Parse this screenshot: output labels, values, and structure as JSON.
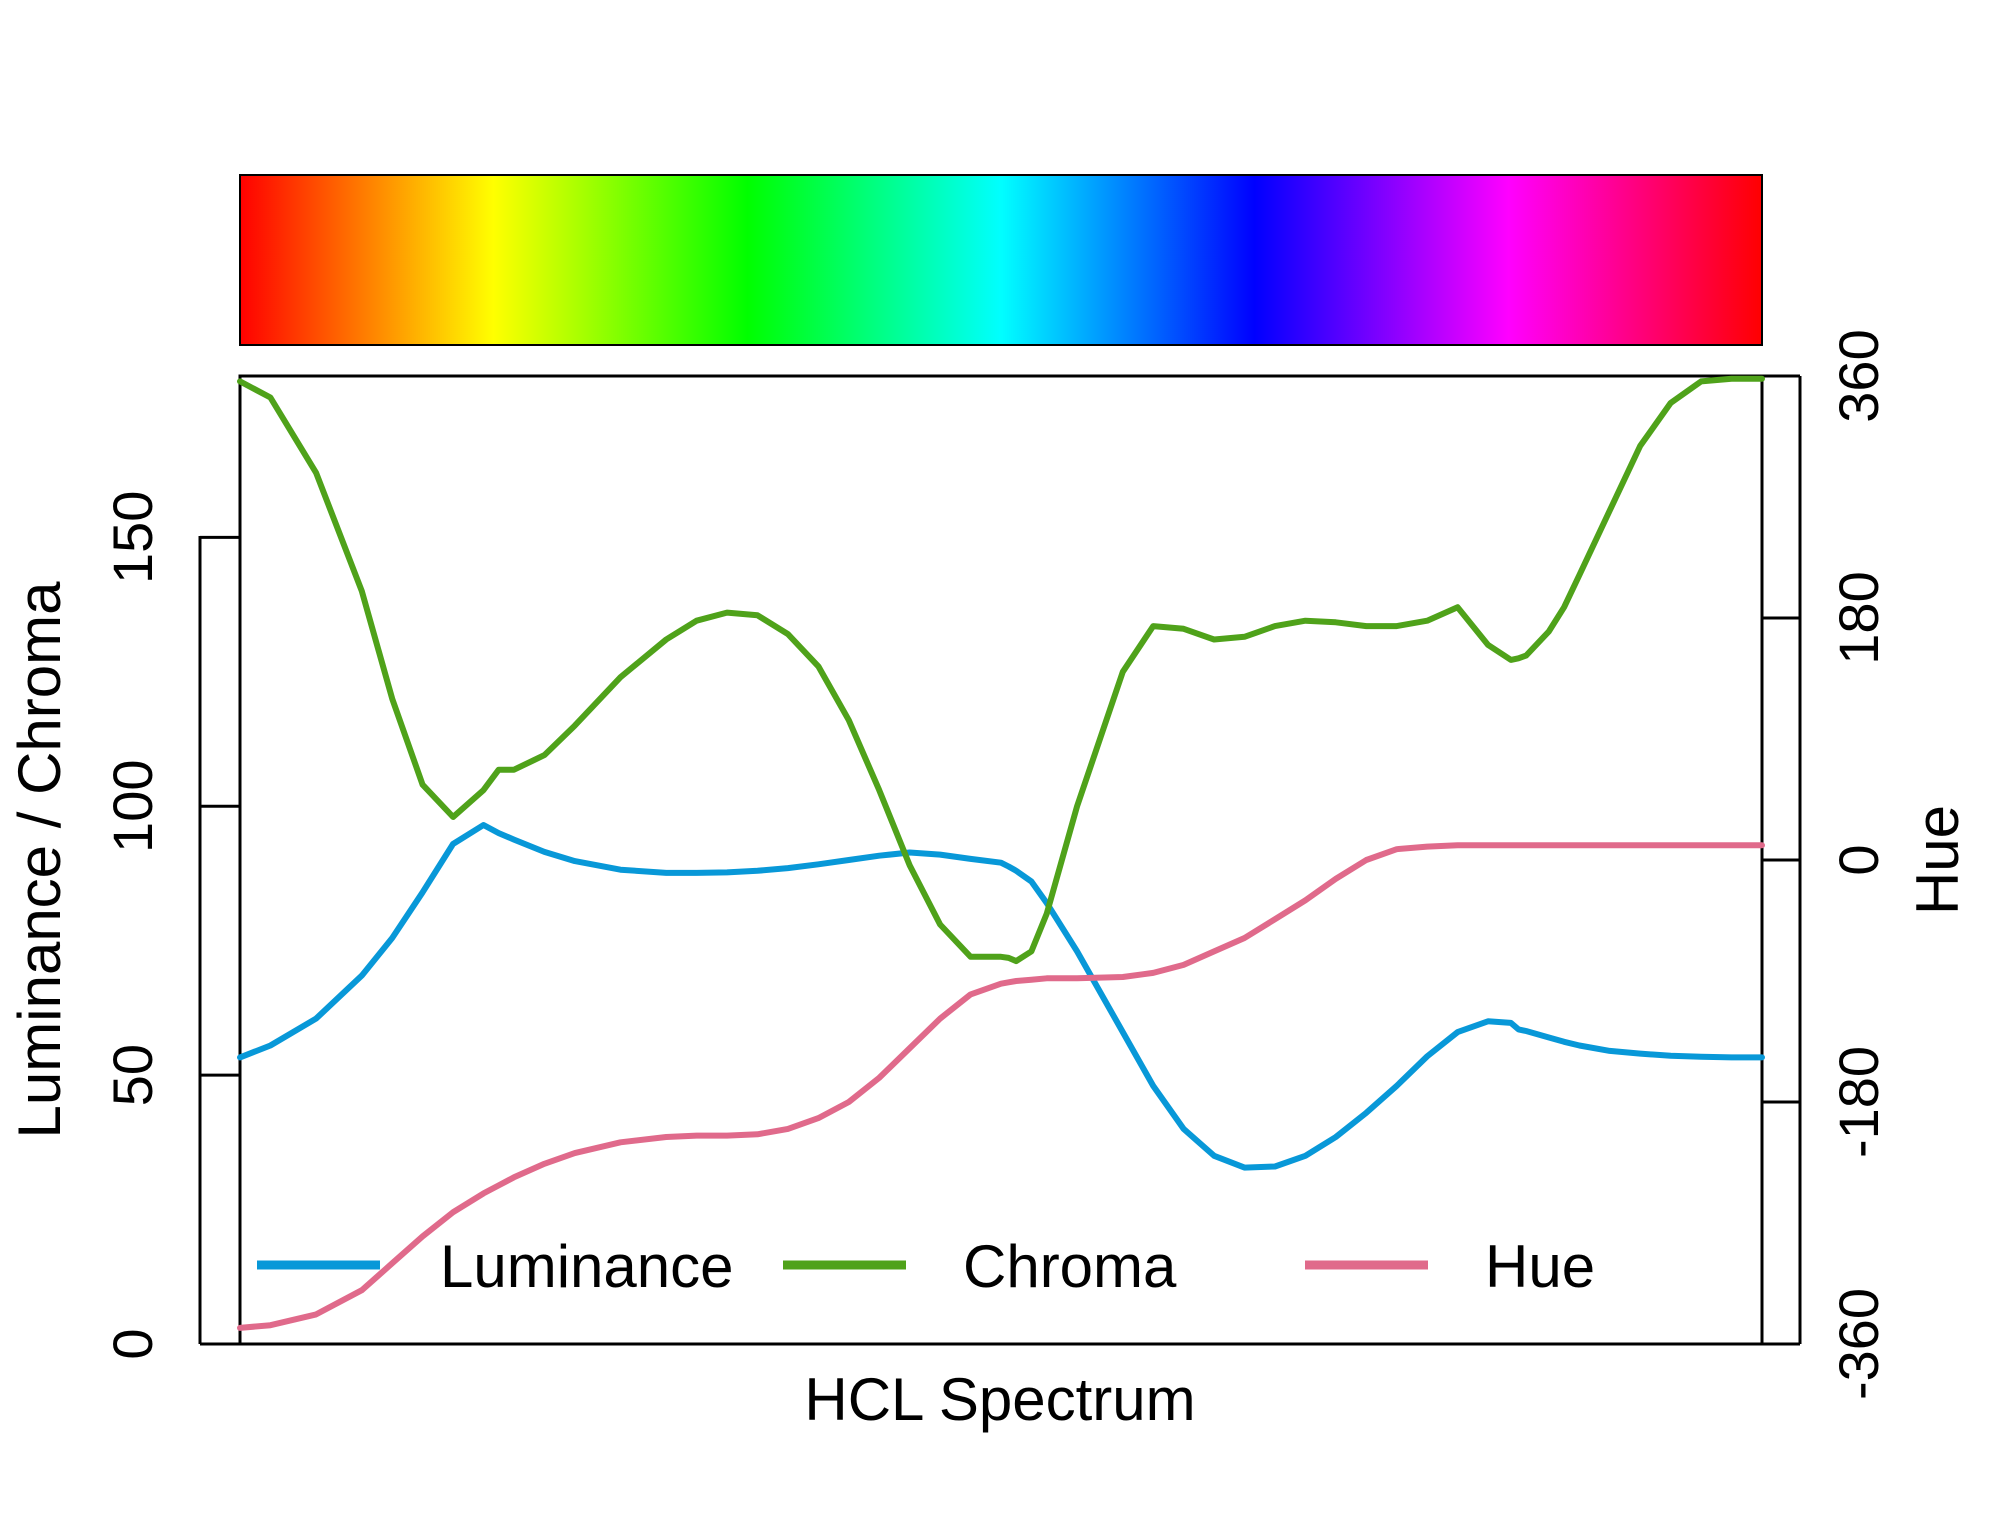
{
  "chart_data": {
    "type": "line",
    "xlabel": "HCL Spectrum",
    "ylabel_left": "Luminance / Chroma",
    "ylabel_right": "Hue",
    "ylim_left": [
      0,
      180
    ],
    "ylim_right": [
      -360,
      360
    ],
    "yticks_left": [
      "0",
      "50",
      "100",
      "150"
    ],
    "yticks_right": [
      "-360",
      "-180",
      "0",
      "180",
      "360"
    ],
    "colorbar": {
      "type": "rainbow",
      "stops": [
        "#FF0000",
        "#FFFF00",
        "#00FF00",
        "#00FFFF",
        "#0000FF",
        "#FF00FF",
        "#FF0000"
      ]
    },
    "x": [
      0,
      0.02,
      0.05,
      0.08,
      0.1,
      0.12,
      0.14,
      0.16,
      0.17,
      0.18,
      0.2,
      0.22,
      0.25,
      0.28,
      0.3,
      0.32,
      0.34,
      0.36,
      0.38,
      0.4,
      0.42,
      0.44,
      0.46,
      0.48,
      0.5,
      0.505,
      0.51,
      0.52,
      0.53,
      0.55,
      0.58,
      0.6,
      0.62,
      0.64,
      0.66,
      0.68,
      0.7,
      0.72,
      0.74,
      0.76,
      0.78,
      0.8,
      0.82,
      0.84,
      0.835,
      0.845,
      0.86,
      0.87,
      0.88,
      0.9,
      0.92,
      0.94,
      0.96,
      0.98,
      1.0
    ],
    "series": [
      {
        "name": "Luminance",
        "color": "#0898D8",
        "axis": "left",
        "values": [
          53.3,
          55.5,
          60.5,
          68.5,
          75.5,
          84.0,
          93.0,
          96.5,
          95.0,
          93.8,
          91.5,
          89.8,
          88.2,
          87.6,
          87.6,
          87.7,
          88.0,
          88.5,
          89.2,
          90.0,
          90.8,
          91.4,
          91.0,
          90.2,
          89.5,
          88.8,
          88.0,
          86.0,
          82.0,
          73.0,
          58.0,
          48.0,
          40.0,
          35.0,
          32.8,
          33.0,
          35.0,
          38.5,
          43.0,
          48.0,
          53.5,
          58.0,
          60.0,
          58.5,
          59.7,
          58.2,
          57.0,
          56.2,
          55.5,
          54.5,
          54.0,
          53.6,
          53.4,
          53.3,
          53.3
        ]
      },
      {
        "name": "Chroma",
        "color": "#4FA21A",
        "axis": "left",
        "values": [
          179.0,
          176.0,
          162.0,
          140.0,
          120.0,
          104.0,
          98.0,
          103.0,
          106.8,
          106.8,
          109.5,
          115.0,
          124.0,
          131.0,
          134.5,
          136.0,
          135.5,
          132.0,
          126.0,
          116.0,
          103.0,
          89.0,
          78.0,
          72.0,
          72.0,
          71.8,
          71.2,
          73.0,
          80.0,
          100.0,
          125.0,
          133.5,
          133.0,
          131.0,
          131.5,
          133.5,
          134.5,
          134.2,
          133.5,
          133.5,
          134.5,
          137.0,
          130.0,
          127.5,
          127.2,
          128.0,
          132.5,
          137.0,
          143.0,
          155.0,
          167.0,
          175.0,
          179.0,
          179.5,
          179.5
        ]
      },
      {
        "name": "Hue",
        "color": "#E06A8B",
        "axis": "right",
        "values": [
          -348,
          -346,
          -338,
          -320,
          -300,
          -280,
          -262,
          -248,
          -242,
          -236,
          -226,
          -218,
          -210,
          -206,
          -205,
          -205,
          -204,
          -200,
          -192,
          -180,
          -162,
          -140,
          -118,
          -100,
          -92,
          -91,
          -90,
          -89,
          -88,
          -88,
          -87,
          -84,
          -78,
          -68,
          -58,
          -44,
          -30,
          -14,
          0,
          8,
          10,
          11,
          11,
          11,
          11,
          11,
          11,
          11,
          11,
          11,
          11,
          11,
          11,
          11,
          11
        ]
      }
    ]
  },
  "legend": {
    "items": [
      {
        "label": "Luminance",
        "color": "#0898D8"
      },
      {
        "label": "Chroma",
        "color": "#4FA21A"
      },
      {
        "label": "Hue",
        "color": "#E06A8B"
      }
    ]
  }
}
